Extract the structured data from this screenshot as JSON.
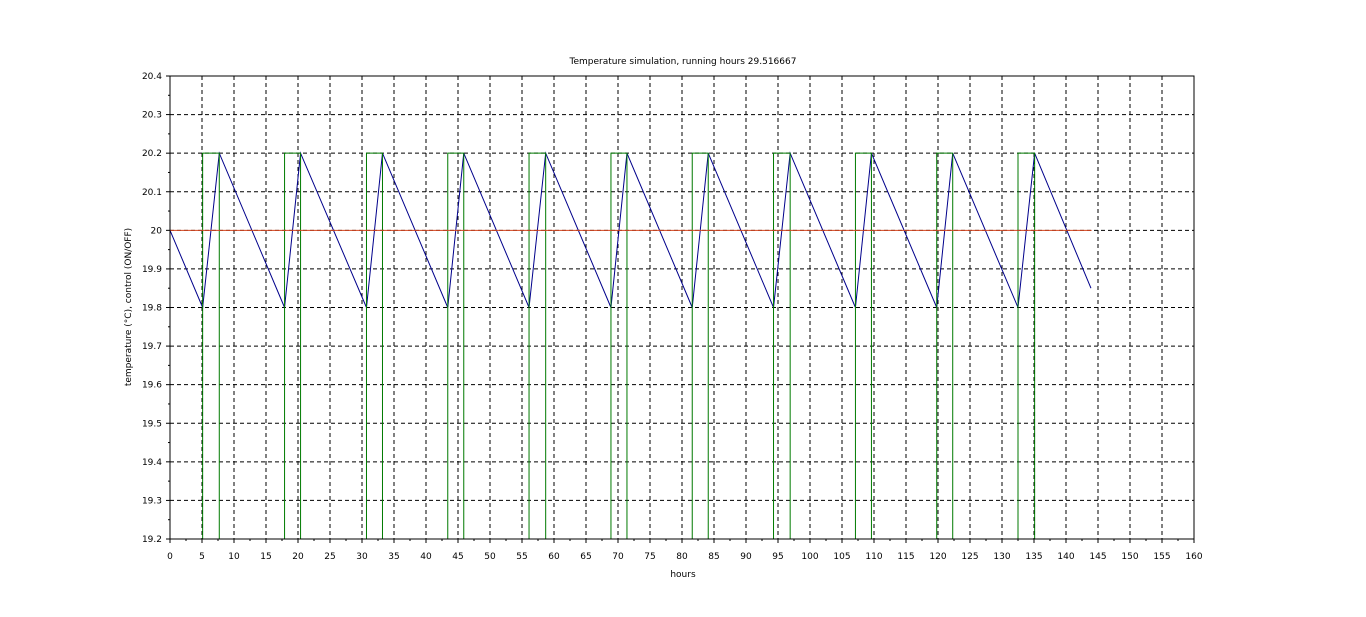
{
  "chart_data": {
    "type": "line",
    "title": "Temperature simulation, running hours 29.516667",
    "xlabel": "hours",
    "ylabel": "temperature (°C), control (ON/OFF)",
    "xlim": [
      0,
      160
    ],
    "ylim": [
      19.2,
      20.4
    ],
    "xticks": [
      0,
      5,
      10,
      15,
      20,
      25,
      30,
      35,
      40,
      45,
      50,
      55,
      60,
      65,
      70,
      75,
      80,
      85,
      90,
      95,
      100,
      105,
      110,
      115,
      120,
      125,
      130,
      135,
      140,
      145,
      150,
      155,
      160
    ],
    "yticks": [
      19.2,
      19.3,
      19.4,
      19.5,
      19.6,
      19.7,
      19.8,
      19.9,
      20,
      20.1,
      20.2,
      20.3,
      20.4
    ],
    "ytick_labels": [
      "19.2",
      "19.3",
      "19.4",
      "19.5",
      "19.6",
      "19.7",
      "19.8",
      "19.9",
      "20",
      "20.1",
      "20.2",
      "20.3",
      "20.4"
    ],
    "grid": true,
    "series": [
      {
        "color": "#00008b",
        "x": [
          0,
          5.1,
          7.7,
          17.9,
          20.4,
          30.7,
          33.2,
          43.4,
          45.9,
          56.1,
          58.7,
          68.9,
          71.4,
          81.6,
          84.1,
          94.3,
          96.9,
          107.1,
          109.6,
          119.8,
          122.3,
          132.5,
          135.1,
          143.9
        ],
        "y": [
          20.0,
          19.8,
          20.2,
          19.8,
          20.2,
          19.8,
          20.2,
          19.8,
          20.2,
          19.8,
          20.2,
          19.8,
          20.2,
          19.8,
          20.2,
          19.8,
          20.2,
          19.8,
          20.2,
          19.8,
          20.2,
          19.8,
          20.2,
          19.85
        ]
      },
      {
        "color": "#007a00",
        "x": [
          0,
          5.1,
          5.1,
          7.7,
          7.7,
          17.9,
          17.9,
          20.4,
          20.4,
          30.7,
          30.7,
          33.2,
          33.2,
          43.4,
          43.4,
          45.9,
          45.9,
          56.1,
          56.1,
          58.7,
          58.7,
          68.9,
          68.9,
          71.4,
          71.4,
          81.6,
          81.6,
          84.1,
          84.1,
          94.3,
          94.3,
          96.9,
          96.9,
          107.1,
          107.1,
          109.6,
          109.6,
          119.8,
          119.8,
          122.3,
          122.3,
          132.5,
          132.5,
          135.1,
          135.1,
          143.9
        ],
        "y": [
          19.2,
          19.2,
          20.2,
          20.2,
          19.2,
          19.2,
          20.2,
          20.2,
          19.2,
          19.2,
          20.2,
          20.2,
          19.2,
          19.2,
          20.2,
          20.2,
          19.2,
          19.2,
          20.2,
          20.2,
          19.2,
          19.2,
          20.2,
          20.2,
          19.2,
          19.2,
          20.2,
          20.2,
          19.2,
          19.2,
          20.2,
          20.2,
          19.2,
          19.2,
          20.2,
          20.2,
          19.2,
          19.2,
          20.2,
          20.2,
          19.2,
          19.2,
          20.2,
          20.2,
          19.2,
          19.2
        ]
      },
      {
        "color": "#d2441e",
        "x": [
          0,
          144
        ],
        "y": [
          20.0,
          20.0
        ]
      }
    ]
  }
}
